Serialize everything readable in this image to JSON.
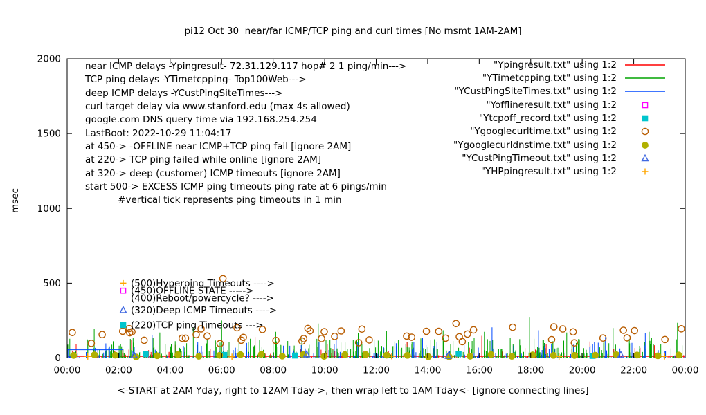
{
  "chart_data": {
    "type": "line",
    "title": "pi12 Oct 30  near/far ICMP/TCP ping and curl times [No msmt 1AM-2AM]",
    "ylabel": "msec",
    "xlabel": "<-START at 2AM Yday, right to 12AM Tday->, then wrap left to 1AM Tday<- [ignore connecting lines]",
    "ylim": [
      0,
      2000
    ],
    "yticks": [
      0,
      500,
      1000,
      1500,
      2000
    ],
    "xlim_hours": [
      0,
      24
    ],
    "xtick_labels": [
      "00:00",
      "02:00",
      "04:00",
      "06:00",
      "08:00",
      "10:00",
      "12:00",
      "14:00",
      "16:00",
      "18:00",
      "20:00",
      "22:00",
      "00:00"
    ],
    "grid": false,
    "legend_position": "top-right",
    "annotations_topleft": [
      "near ICMP delays -Ypingresult- 72.31.129.117 hop# 2 1 ping/min--->",
      "TCP ping delays -YTimetcpping- Top100Web--->",
      "deep ICMP delays -YCustPingSiteTimes--->",
      "curl target delay via www.stanford.edu (max 4s allowed)",
      "google.com DNS query time via 192.168.254.254",
      "LastBoot: 2022-10-29 11:04:17",
      "at 450-> -OFFLINE near ICMP+TCP ping fail [ignore 2AM]",
      "at 220-> TCP ping failed while online [ignore 2AM]",
      "at 320-> deep (customer) ICMP timeouts [ignore 2AM]",
      "start 500-> EXCESS ICMP ping timeouts ping rate at 6 pings/min",
      "           #vertical tick represents ping timeouts in 1 min"
    ],
    "annotations_mid": [
      {
        "marker": "plus",
        "color": "#ffa500",
        "text": "(500)Hyperping Timeouts ---->",
        "value": 500
      },
      {
        "marker": "square-open",
        "color": "#ff00ff",
        "text": "(450)OFFLINE STATE ----->",
        "value": 450
      },
      {
        "marker": "none",
        "color": "#000000",
        "text": "(400)Reboot/powercycle? ---->",
        "value": 400
      },
      {
        "marker": "triangle-open",
        "color": "#4169e1",
        "text": "(320)Deep ICMP Timeouts ---->",
        "value": 320
      },
      {
        "marker": "square-filled",
        "color": "#00c5cd",
        "text": "(220)TCP ping Timeouts --->",
        "value": 220
      }
    ],
    "series": [
      {
        "id": "ping",
        "legend": "\"Ypingresult.txt\" using 1:2",
        "color": "#ff0000",
        "style": "impulses",
        "baseline": 10,
        "noise": {
          "seed": 11,
          "count": 150,
          "x": [
            0,
            24
          ],
          "y": [
            4,
            70
          ],
          "pow": 3
        },
        "points": [
          [
            0.35,
            95
          ],
          [
            2.5,
            120
          ],
          [
            4.2,
            88
          ],
          [
            7.3,
            140
          ],
          [
            10.1,
            90
          ],
          [
            13.2,
            105
          ],
          [
            16.1,
            148
          ],
          [
            18.6,
            95
          ],
          [
            20.3,
            110
          ],
          [
            22.8,
            85
          ]
        ]
      },
      {
        "id": "tcpping",
        "legend": "\"YTimetcpping.txt\" using 1:2",
        "color": "#00a400",
        "style": "impulses",
        "noise": {
          "seed": 7,
          "count": 420,
          "x": [
            0,
            24
          ],
          "y": [
            5,
            135
          ],
          "pow": 2.2
        },
        "points": [
          [
            1.05,
            195
          ],
          [
            3.6,
            170
          ],
          [
            4.9,
            205
          ],
          [
            6.0,
            250
          ],
          [
            8.1,
            175
          ],
          [
            9.75,
            230
          ],
          [
            11.3,
            165
          ],
          [
            12.4,
            180
          ],
          [
            14.6,
            185
          ],
          [
            16.2,
            175
          ],
          [
            17.95,
            270
          ],
          [
            19.4,
            170
          ],
          [
            21.2,
            200
          ],
          [
            22.6,
            175
          ],
          [
            23.7,
            235
          ]
        ]
      },
      {
        "id": "custping",
        "legend": "\"YCustPingSiteTimes.txt\" using 1:2",
        "color": "#0049ff",
        "style": "impulses",
        "noise": {
          "seed": 5,
          "count": 240,
          "x": [
            0,
            24
          ],
          "y": [
            5,
            110
          ],
          "pow": 2.3
        },
        "points": [
          [
            3.3,
            155
          ],
          [
            5.2,
            130
          ],
          [
            10.45,
            150
          ],
          [
            13.8,
            135
          ],
          [
            16.5,
            205
          ],
          [
            18.3,
            185
          ],
          [
            20.9,
            140
          ],
          [
            22.45,
            165
          ]
        ],
        "segments": [
          [
            [
              0,
              55
            ],
            [
              2.15,
              55
            ]
          ]
        ]
      },
      {
        "id": "offline",
        "legend": "\"Yofflineresult.txt\" using 1:2",
        "color": "#ff00ff",
        "style": "points",
        "marker": "square-open",
        "points": []
      },
      {
        "id": "tcpoff",
        "legend": "\"Ytcpoff_record.txt\" using 1:2",
        "color": "#00c5cd",
        "style": "points",
        "marker": "square-filled",
        "points": [
          [
            3.05,
            25
          ],
          [
            6.1,
            20
          ],
          [
            8.85,
            16
          ],
          [
            15.2,
            28
          ],
          [
            20.4,
            14
          ]
        ]
      },
      {
        "id": "curl",
        "legend": "\"Ygooglecurltime.txt\" using 1:2",
        "color": "#b85c00",
        "style": "points",
        "marker": "circle-open",
        "noise": {
          "seed": 21,
          "count": 46,
          "x": [
            0.1,
            23.9
          ],
          "y": [
            95,
            205
          ],
          "pow": 1
        },
        "points": [
          [
            0.2,
            170
          ],
          [
            6.05,
            530
          ],
          [
            15.1,
            230
          ],
          [
            17.3,
            205
          ],
          [
            18.9,
            208
          ],
          [
            21.6,
            185
          ],
          [
            23.85,
            195
          ]
        ]
      },
      {
        "id": "dns",
        "legend": "\"Ygooglecurldnstime.txt\" using 1:2",
        "color": "#b0b000",
        "style": "points",
        "marker": "circle-filled",
        "noise": {
          "seed": 33,
          "count": 30,
          "x": [
            0.25,
            23.75
          ],
          "y": [
            6,
            26
          ],
          "pow": 1,
          "even": true
        }
      },
      {
        "id": "custtimeout",
        "legend": "\"YCustPingTimeout.txt\" using 1:2",
        "color": "#4169e1",
        "style": "points",
        "marker": "triangle-open",
        "points": [
          [
            2.6,
            18
          ],
          [
            9.3,
            24
          ],
          [
            14.8,
            14
          ],
          [
            21.5,
            20
          ]
        ]
      },
      {
        "id": "hpping",
        "legend": "\"YHPpingresult.txt\" using 1:2",
        "color": "#ffa500",
        "style": "points",
        "marker": "plus",
        "points": [
          [
            0.8,
            10
          ],
          [
            6.4,
            8
          ],
          [
            12.6,
            12
          ],
          [
            19.1,
            9
          ],
          [
            23.2,
            11
          ]
        ]
      }
    ]
  }
}
